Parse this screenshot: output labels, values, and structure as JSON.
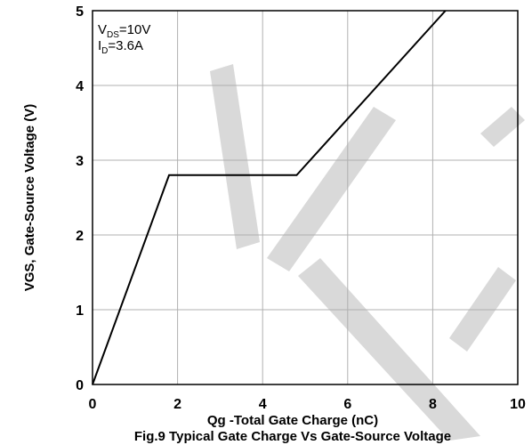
{
  "chart_data": {
    "type": "line",
    "title": "",
    "xlabel": "Qg -Total Gate Charge (nC)",
    "ylabel": "VGS, Gate-Source Voltage (V)",
    "xlim": [
      0,
      10
    ],
    "ylim": [
      0,
      5
    ],
    "x_ticks": [
      "0",
      "2",
      "4",
      "6",
      "8",
      "10"
    ],
    "y_ticks": [
      "0",
      "1",
      "2",
      "3",
      "4",
      "5"
    ],
    "grid": true,
    "series": [
      {
        "x": [
          0,
          1.8,
          4.8,
          8.3
        ],
        "y": [
          0,
          2.8,
          2.8,
          5.0
        ]
      }
    ],
    "annotation": {
      "vds_main": "V",
      "vds_sub": "DS",
      "vds_val": "=10V",
      "id_main": "I",
      "id_sub": "D",
      "id_val": "=3.6A"
    },
    "caption": "Fig.9 Typical Gate Charge Vs Gate-Source Voltage"
  },
  "colors": {
    "line": "#000000",
    "grid": "#b0b0b0",
    "frame": "#000000",
    "watermark": "#d9d9d9"
  }
}
